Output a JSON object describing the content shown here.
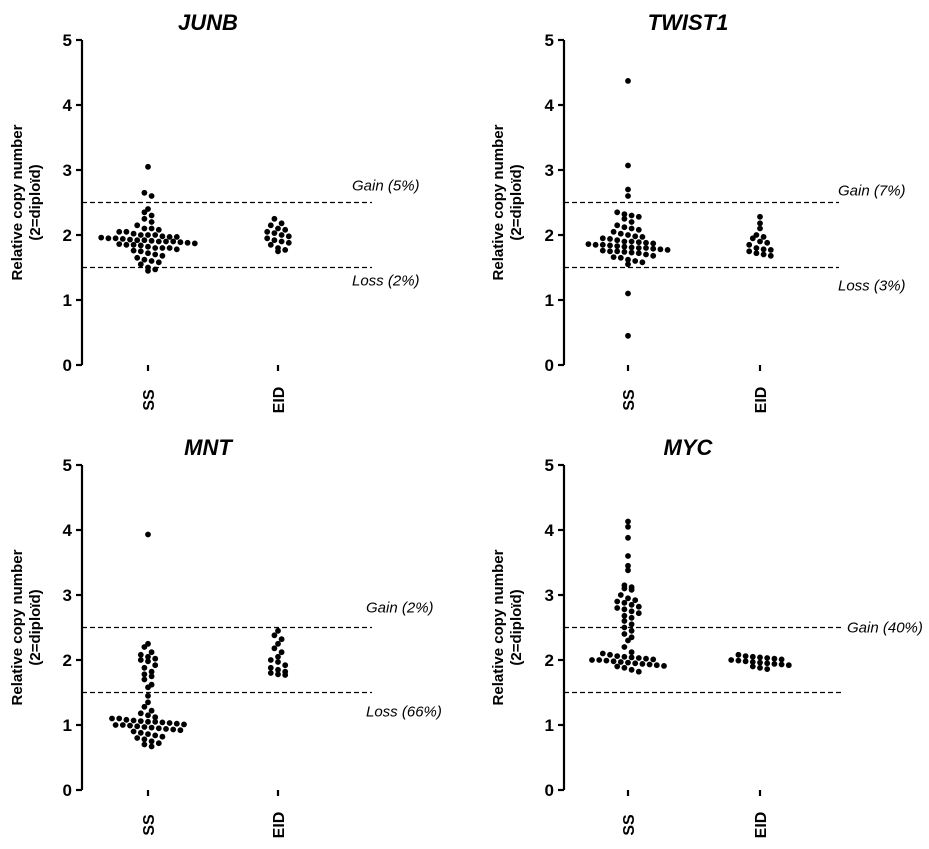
{
  "chart_data": [
    {
      "type": "scatter",
      "title": "JUNB",
      "ylabel": [
        "Relative copy number",
        "(2=diploïd)"
      ],
      "ylim": [
        0,
        5
      ],
      "yticks": [
        "0",
        "1",
        "2",
        "3",
        "4",
        "5"
      ],
      "categories": [
        "SS",
        "EID"
      ],
      "reference_lines": [
        2.5,
        1.5
      ],
      "annotations": [
        {
          "text": "Gain (5%)",
          "y": 2.5
        },
        {
          "text": "Loss (2%)",
          "y": 1.5
        }
      ],
      "series": [
        {
          "category": "SS",
          "values": [
            3.05,
            2.65,
            2.6,
            2.4,
            2.35,
            2.3,
            2.25,
            2.2,
            2.15,
            2.1,
            2.1,
            2.08,
            2.05,
            2.05,
            2.02,
            2.0,
            2.0,
            2.0,
            1.98,
            1.97,
            1.97,
            1.96,
            1.95,
            1.95,
            1.94,
            1.93,
            1.92,
            1.92,
            1.91,
            1.9,
            1.9,
            1.9,
            1.89,
            1.88,
            1.87,
            1.86,
            1.85,
            1.85,
            1.84,
            1.82,
            1.8,
            1.8,
            1.8,
            1.78,
            1.76,
            1.75,
            1.72,
            1.7,
            1.68,
            1.65,
            1.62,
            1.6,
            1.58,
            1.55,
            1.5,
            1.47,
            1.45
          ]
        },
        {
          "category": "EID",
          "values": [
            2.25,
            2.18,
            2.15,
            2.1,
            2.08,
            2.05,
            2.03,
            2.0,
            1.98,
            1.95,
            1.92,
            1.9,
            1.88,
            1.85,
            1.8,
            1.77,
            1.75
          ]
        }
      ]
    },
    {
      "type": "scatter",
      "title": "TWIST1",
      "ylabel": [
        "Relative copy number",
        "(2=diploïd)"
      ],
      "ylim": [
        0,
        5
      ],
      "yticks": [
        "0",
        "1",
        "2",
        "3",
        "4",
        "5"
      ],
      "categories": [
        "SS",
        "EID"
      ],
      "reference_lines": [
        2.5,
        1.5
      ],
      "annotations": [
        {
          "text": "Gain (7%)",
          "y": 2.5
        },
        {
          "text": "Loss (3%)",
          "y": 1.5
        }
      ],
      "series": [
        {
          "category": "SS",
          "values": [
            4.37,
            3.07,
            2.7,
            2.6,
            2.35,
            2.32,
            2.3,
            2.28,
            2.25,
            2.2,
            2.15,
            2.12,
            2.1,
            2.08,
            2.05,
            2.02,
            2.0,
            1.98,
            1.97,
            1.95,
            1.94,
            1.92,
            1.9,
            1.9,
            1.89,
            1.88,
            1.87,
            1.86,
            1.85,
            1.85,
            1.84,
            1.83,
            1.82,
            1.81,
            1.8,
            1.8,
            1.79,
            1.78,
            1.77,
            1.76,
            1.75,
            1.75,
            1.74,
            1.73,
            1.72,
            1.7,
            1.68,
            1.66,
            1.65,
            1.62,
            1.6,
            1.58,
            1.55,
            1.1,
            0.45
          ]
        },
        {
          "category": "EID",
          "values": [
            2.28,
            2.18,
            2.1,
            2.0,
            1.97,
            1.95,
            1.9,
            1.88,
            1.85,
            1.8,
            1.78,
            1.77,
            1.75,
            1.72,
            1.7,
            1.68
          ]
        }
      ]
    },
    {
      "type": "scatter",
      "title": "MNT",
      "ylabel": [
        "Relative copy number",
        "(2=diploïd)"
      ],
      "ylim": [
        0,
        5
      ],
      "yticks": [
        "0",
        "1",
        "2",
        "3",
        "4",
        "5"
      ],
      "categories": [
        "SS",
        "EID"
      ],
      "reference_lines": [
        2.5,
        1.5
      ],
      "annotations": [
        {
          "text": "Gain (2%)",
          "y": 2.5
        },
        {
          "text": "Loss (66%)",
          "y": 1.5
        }
      ],
      "series": [
        {
          "category": "SS",
          "values": [
            3.93,
            2.25,
            2.2,
            2.12,
            2.08,
            2.05,
            2.02,
            2.0,
            1.98,
            1.92,
            1.88,
            1.82,
            1.78,
            1.75,
            1.7,
            1.62,
            1.58,
            1.45,
            1.35,
            1.28,
            1.22,
            1.18,
            1.15,
            1.12,
            1.1,
            1.1,
            1.08,
            1.07,
            1.06,
            1.05,
            1.05,
            1.04,
            1.03,
            1.02,
            1.01,
            1.0,
            1.0,
            0.99,
            0.98,
            0.97,
            0.96,
            0.95,
            0.94,
            0.93,
            0.92,
            0.9,
            0.88,
            0.86,
            0.84,
            0.82,
            0.8,
            0.78,
            0.75,
            0.72,
            0.7,
            0.67
          ]
        },
        {
          "category": "EID",
          "values": [
            2.45,
            2.38,
            2.32,
            2.25,
            2.18,
            2.12,
            2.05,
            2.0,
            1.97,
            1.92,
            1.88,
            1.85,
            1.82,
            1.8,
            1.78,
            1.77
          ]
        }
      ]
    },
    {
      "type": "scatter",
      "title": "MYC",
      "ylabel": [
        "Relative copy number",
        "(2=diploïd)"
      ],
      "ylim": [
        0,
        5
      ],
      "yticks": [
        "0",
        "1",
        "2",
        "3",
        "4",
        "5"
      ],
      "categories": [
        "SS",
        "EID"
      ],
      "reference_lines": [
        2.5
      ],
      "extra_lines": [
        1.5
      ],
      "annotations": [
        {
          "text": "Gain (40%)",
          "y": 2.5
        }
      ],
      "series": [
        {
          "category": "SS",
          "values": [
            4.13,
            4.05,
            3.88,
            3.6,
            3.45,
            3.38,
            3.15,
            3.12,
            3.1,
            3.08,
            3.0,
            2.95,
            2.92,
            2.9,
            2.88,
            2.85,
            2.82,
            2.8,
            2.78,
            2.75,
            2.72,
            2.68,
            2.65,
            2.6,
            2.55,
            2.5,
            2.45,
            2.4,
            2.35,
            2.3,
            2.2,
            2.12,
            2.1,
            2.08,
            2.06,
            2.05,
            2.04,
            2.03,
            2.02,
            2.01,
            2.0,
            2.0,
            1.99,
            1.98,
            1.97,
            1.96,
            1.95,
            1.94,
            1.93,
            1.92,
            1.91,
            1.9,
            1.88,
            1.85,
            1.82
          ]
        },
        {
          "category": "EID",
          "values": [
            2.08,
            2.06,
            2.05,
            2.04,
            2.03,
            2.02,
            2.01,
            2.0,
            1.99,
            1.98,
            1.97,
            1.96,
            1.95,
            1.94,
            1.93,
            1.92,
            1.9,
            1.88,
            1.86
          ]
        }
      ]
    }
  ]
}
